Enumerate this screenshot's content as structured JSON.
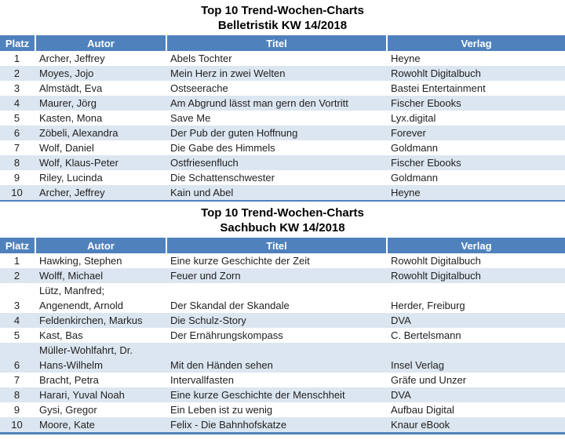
{
  "colors": {
    "header_bg": "#4F81BD",
    "header_text": "#ffffff",
    "row_alt_bg": "#DCE6F1",
    "row_bg": "#ffffff",
    "table_border": "#4F81BD",
    "body_text": "#1f1f1f",
    "title_text": "#000000"
  },
  "tables": [
    {
      "title_line1": "Top 10 Trend-Wochen-Charts",
      "title_line2": "Belletristik KW 14/2018",
      "columns": [
        "Platz",
        "Autor",
        "Titel",
        "Verlag"
      ],
      "rows": [
        {
          "platz": "1",
          "autor": "Archer, Jeffrey",
          "titel": "Abels Tochter",
          "verlag": "Heyne"
        },
        {
          "platz": "2",
          "autor": "Moyes, Jojo",
          "titel": "Mein Herz in zwei Welten",
          "verlag": "Rowohlt Digitalbuch"
        },
        {
          "platz": "3",
          "autor": "Almstädt, Eva",
          "titel": "Ostseerache",
          "verlag": "Bastei Entertainment"
        },
        {
          "platz": "4",
          "autor": "Maurer, Jörg",
          "titel": "Am Abgrund lässt man gern den Vortritt",
          "verlag": "Fischer Ebooks"
        },
        {
          "platz": "5",
          "autor": "Kasten, Mona",
          "titel": "Save Me",
          "verlag": "Lyx.digital"
        },
        {
          "platz": "6",
          "autor": "Zöbeli, Alexandra",
          "titel": "Der Pub der guten Hoffnung",
          "verlag": "Forever"
        },
        {
          "platz": "7",
          "autor": "Wolf, Daniel",
          "titel": "Die Gabe des Himmels",
          "verlag": "Goldmann"
        },
        {
          "platz": "8",
          "autor": "Wolf, Klaus-Peter",
          "titel": "Ostfriesenfluch",
          "verlag": "Fischer Ebooks"
        },
        {
          "platz": "9",
          "autor": "Riley, Lucinda",
          "titel": "Die Schattenschwester",
          "verlag": "Goldmann"
        },
        {
          "platz": "10",
          "autor": "Archer, Jeffrey",
          "titel": "Kain und Abel",
          "verlag": "Heyne"
        }
      ]
    },
    {
      "title_line1": "Top 10 Trend-Wochen-Charts",
      "title_line2": "Sachbuch KW 14/2018",
      "columns": [
        "Platz",
        "Autor",
        "Titel",
        "Verlag"
      ],
      "rows": [
        {
          "platz": "1",
          "autor": "Hawking, Stephen",
          "titel": "Eine kurze Geschichte der Zeit",
          "verlag": "Rowohlt Digitalbuch"
        },
        {
          "platz": "2",
          "autor": "Wolff, Michael",
          "titel": "Feuer und Zorn",
          "verlag": "Rowohlt Digitalbuch"
        },
        {
          "platz": "3",
          "autor": "Lütz, Manfred;\nAngenendt, Arnold",
          "titel": "Der Skandal der Skandale",
          "verlag": "Herder, Freiburg"
        },
        {
          "platz": "4",
          "autor": "Feldenkirchen, Markus",
          "titel": "Die Schulz-Story",
          "verlag": "DVA"
        },
        {
          "platz": "5",
          "autor": "Kast, Bas",
          "titel": "Der Ernährungskompass",
          "verlag": "C. Bertelsmann"
        },
        {
          "platz": "6",
          "autor": "Müller-Wohlfahrt, Dr.\nHans-Wilhelm",
          "titel": "Mit den Händen sehen",
          "verlag": "Insel Verlag"
        },
        {
          "platz": "7",
          "autor": "Bracht, Petra",
          "titel": "Intervallfasten",
          "verlag": "Gräfe und Unzer"
        },
        {
          "platz": "8",
          "autor": "Harari, Yuval Noah",
          "titel": "Eine kurze Geschichte der Menschheit",
          "verlag": "DVA"
        },
        {
          "platz": "9",
          "autor": "Gysi, Gregor",
          "titel": "Ein Leben ist zu wenig",
          "verlag": "Aufbau Digital"
        },
        {
          "platz": "10",
          "autor": "Moore, Kate",
          "titel": "Felix - Die Bahnhofskatze",
          "verlag": "Knaur eBook"
        }
      ]
    }
  ]
}
